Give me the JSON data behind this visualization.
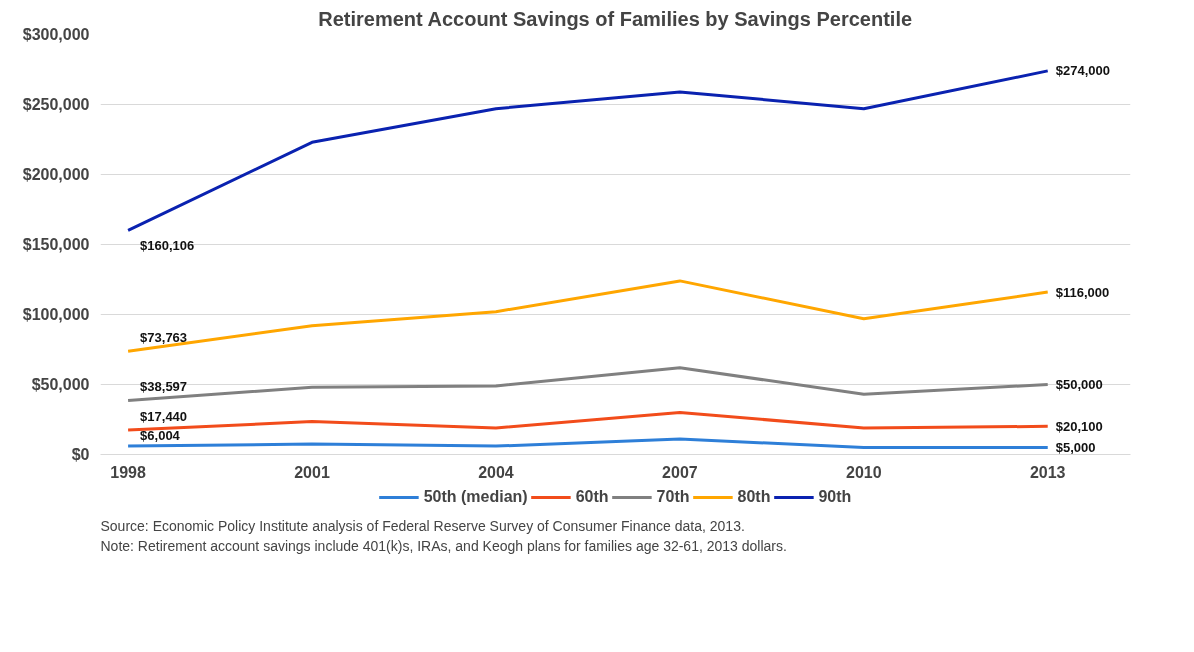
{
  "chart_data": {
    "type": "line",
    "title": "Retirement Account Savings of Families by Savings Percentile",
    "categories": [
      "1998",
      "2001",
      "2004",
      "2007",
      "2010",
      "2013"
    ],
    "series": [
      {
        "name": "50th (median)",
        "color": "#2e7fd8",
        "values": [
          6004,
          7500,
          6000,
          11000,
          5000,
          5000
        ],
        "value_labels": [
          "$6,004",
          null,
          null,
          null,
          null,
          "$5,000"
        ]
      },
      {
        "name": "60th",
        "color": "#f24c1b",
        "values": [
          17440,
          23500,
          19000,
          30000,
          19000,
          20100
        ],
        "value_labels": [
          "$17,440",
          null,
          null,
          null,
          null,
          "$20,100"
        ]
      },
      {
        "name": "70th",
        "color": "#808080",
        "values": [
          38597,
          48000,
          49000,
          62000,
          43000,
          50000
        ],
        "value_labels": [
          "$38,597",
          null,
          null,
          null,
          null,
          "$50,000"
        ]
      },
      {
        "name": "80th",
        "color": "#ffa600",
        "values": [
          73763,
          92000,
          102000,
          124000,
          97000,
          116000
        ],
        "value_labels": [
          "$73,763",
          null,
          null,
          null,
          null,
          "$116,000"
        ]
      },
      {
        "name": "90th",
        "color": "#0a22b0",
        "values": [
          160106,
          223000,
          247000,
          259000,
          247000,
          274000
        ],
        "value_labels": [
          "$160,106",
          null,
          null,
          null,
          null,
          "$274,000"
        ]
      }
    ],
    "ylim": [
      0,
      300000
    ],
    "yticks": [
      {
        "value": 0,
        "label": "$0"
      },
      {
        "value": 50000,
        "label": "$50,000"
      },
      {
        "value": 100000,
        "label": "$100,000"
      },
      {
        "value": 150000,
        "label": "$150,000"
      },
      {
        "value": 200000,
        "label": "$200,000"
      },
      {
        "value": 250000,
        "label": "$250,000"
      },
      {
        "value": 300000,
        "label": "$300,000"
      }
    ],
    "grid": "y",
    "legend": "bottom",
    "marker": "none",
    "line_style": "solid",
    "annotations": [
      "Source: Economic Policy Institute analysis of Federal Reserve Survey of Consumer Finance data, 2013.",
      "Note: Retirement account savings include 401(k)s, IRAs, and Keogh plans for families age 32-61, 2013 dollars."
    ]
  }
}
